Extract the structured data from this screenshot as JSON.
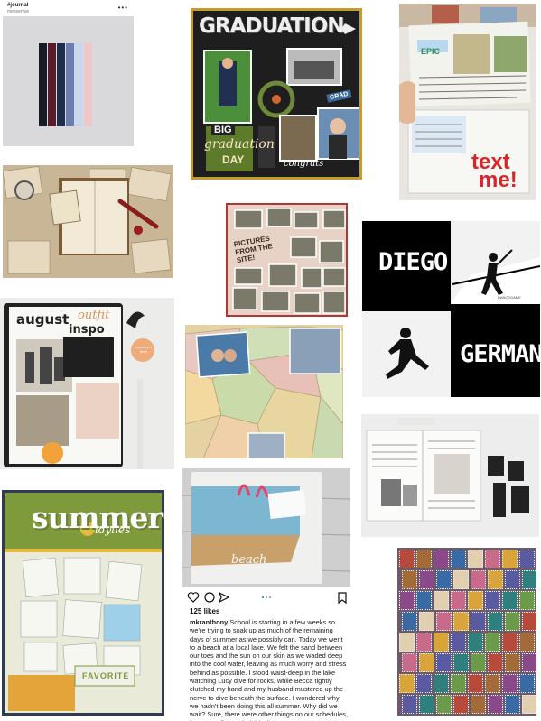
{
  "instagram_post": {
    "handle": "#journal",
    "sub_handle": "messeryse",
    "more_icon": "more-horizontal-icon",
    "strip_colors": [
      "#161b24",
      "#5a1c26",
      "#1f2d4c",
      "#6a7fb0",
      "#c7d8ec",
      "#f0c7c9"
    ]
  },
  "graduation": {
    "title": "GRADUATION",
    "big_tag": "BIG",
    "day_script": "graduation",
    "day_word": "DAY",
    "grad_tag": "GRAD",
    "congrats_script": "congrats"
  },
  "text_me": {
    "epic_label": "EPIC",
    "message_line1": "text",
    "message_line2": "me!"
  },
  "pictures_site": {
    "label_lines": [
      "PICTURES",
      "FROM THE",
      "SITE!"
    ]
  },
  "diego_german": {
    "first_name": "DIEGO",
    "last_name": "GERMAN",
    "small_tag": "DANCEGAME"
  },
  "august": {
    "title_word1": "august",
    "title_word2": "outfit",
    "title_word3": "inspo",
    "sticker_text": "summer is here"
  },
  "summer": {
    "title": "summer",
    "subtitle": "idylles",
    "label": "FAVORITE"
  },
  "beach": {
    "label": "beach"
  },
  "caption_post": {
    "likes": "125 likes",
    "username": "mkranthony",
    "caption": "School is starting in a few weeks so we're trying to soak up as much of the remaining days of summer as we possibly can. Today we went to a beach at a local lake. We felt the sand between our toes and the sun on our skin as we waded deep into the cool water, leaving as much worry and stress behind as possible. I stood waist-deep in the lake watching Lucy dive for rocks, while Becca tightly clutched my hand and my husband mustered up the nerve to dive beneath the surface. I wondered why we hadn't been doing this all summer. Why did we wait? Sure, there were other things on our schedules, but we really needed this time to",
    "icons": [
      "heart-icon",
      "comment-icon",
      "share-icon",
      "bookmark-icon"
    ]
  },
  "colors": {
    "frame_gold": "#c79a2c",
    "frame_red": "#b03535",
    "summer_green": "#7f9a3a",
    "text_me_red": "#d8262b"
  }
}
